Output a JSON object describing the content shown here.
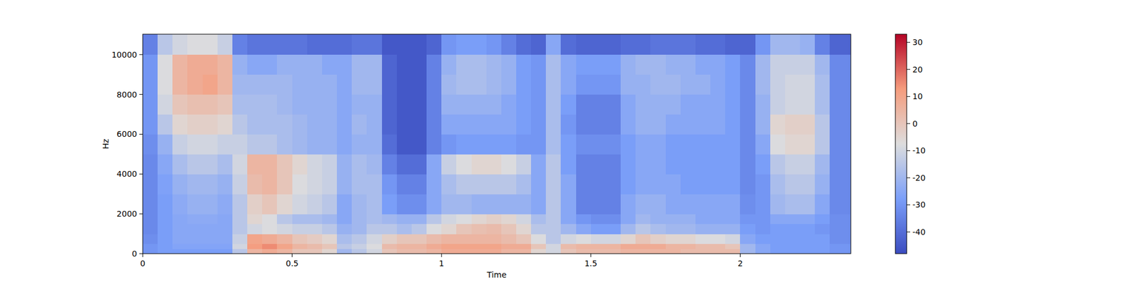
{
  "chart_data": {
    "type": "heatmap",
    "x_label": "Time",
    "y_label": "Hz",
    "xlim": [
      0,
      2.37
    ],
    "xticks": [
      0,
      0.5,
      1,
      1.5,
      2
    ],
    "ylim": [
      0,
      11025
    ],
    "yticks": [
      0,
      2000,
      4000,
      6000,
      8000,
      10000
    ],
    "clim": [
      -48,
      33
    ],
    "cticks": [
      -40,
      -30,
      -20,
      -10,
      0,
      10,
      20,
      30
    ],
    "x_edges": [
      0,
      0.05,
      0.1,
      0.15,
      0.2,
      0.25,
      0.3,
      0.35,
      0.4,
      0.45,
      0.5,
      0.55,
      0.6,
      0.65,
      0.7,
      0.75,
      0.8,
      0.85,
      0.9,
      0.95,
      1,
      1.05,
      1.1,
      1.15,
      1.2,
      1.25,
      1.3,
      1.35,
      1.4,
      1.45,
      1.5,
      1.55,
      1.6,
      1.65,
      1.7,
      1.75,
      1.8,
      1.85,
      1.9,
      1.95,
      2,
      2.05,
      2.1,
      2.15,
      2.2,
      2.25,
      2.3,
      2.37
    ],
    "y_edges": [
      0,
      250,
      500,
      1000,
      1500,
      2000,
      3000,
      4000,
      5000,
      6000,
      7000,
      8000,
      9000,
      10000,
      11025
    ],
    "cells": [
      [
        -30,
        -28,
        -28,
        -28,
        -28,
        -28,
        -15,
        5,
        8,
        5,
        0,
        0,
        -5,
        -20,
        -15,
        -10,
        0,
        3,
        3,
        5,
        8,
        8,
        8,
        8,
        5,
        5,
        -5,
        -10,
        0,
        3,
        3,
        3,
        5,
        5,
        5,
        5,
        3,
        3,
        3,
        3,
        -20,
        -25,
        -28,
        -28,
        -28,
        -28,
        -30
      ],
      [
        -30,
        -28,
        -26,
        -26,
        -26,
        -26,
        -10,
        12,
        15,
        10,
        5,
        3,
        0,
        -15,
        -12,
        -8,
        3,
        5,
        5,
        8,
        10,
        10,
        10,
        10,
        8,
        8,
        0,
        -10,
        3,
        5,
        5,
        5,
        8,
        8,
        8,
        5,
        5,
        3,
        3,
        0,
        -20,
        -25,
        -28,
        -28,
        -28,
        -28,
        -30
      ],
      [
        -32,
        -28,
        -25,
        -25,
        -25,
        -25,
        -12,
        10,
        8,
        5,
        0,
        -2,
        -5,
        -18,
        -15,
        -10,
        -3,
        0,
        0,
        3,
        5,
        5,
        5,
        5,
        3,
        0,
        -8,
        -15,
        -10,
        -8,
        -10,
        -10,
        -5,
        0,
        -3,
        -5,
        -5,
        -8,
        -8,
        -10,
        -25,
        -28,
        -28,
        -28,
        -28,
        -28,
        -32
      ],
      [
        -33,
        -28,
        -25,
        -25,
        -25,
        -25,
        -15,
        -10,
        -8,
        -10,
        -12,
        -12,
        -15,
        -22,
        -20,
        -15,
        -15,
        -18,
        -15,
        -8,
        -5,
        0,
        2,
        3,
        0,
        -5,
        -15,
        -15,
        -20,
        -25,
        -28,
        -28,
        -20,
        -15,
        -18,
        -20,
        -20,
        -22,
        -22,
        -22,
        -28,
        -30,
        -28,
        -28,
        -28,
        -30,
        -32
      ],
      [
        -33,
        -28,
        -25,
        -24,
        -24,
        -25,
        -15,
        -5,
        -8,
        -15,
        -18,
        -18,
        -20,
        -25,
        -20,
        -18,
        -20,
        -22,
        -22,
        -15,
        -10,
        -8,
        -5,
        -3,
        -5,
        -10,
        -18,
        -15,
        -25,
        -30,
        -32,
        -32,
        -25,
        -20,
        -22,
        -22,
        -22,
        -25,
        -25,
        -25,
        -30,
        -30,
        -25,
        -25,
        -25,
        -28,
        -32
      ],
      [
        -33,
        -28,
        -24,
        -22,
        -22,
        -24,
        -15,
        -3,
        0,
        -5,
        -10,
        -12,
        -15,
        -25,
        -20,
        -18,
        -28,
        -32,
        -32,
        -25,
        -20,
        -20,
        -22,
        -22,
        -22,
        -22,
        -25,
        -15,
        -25,
        -35,
        -35,
        -35,
        -25,
        -22,
        -22,
        -25,
        -25,
        -25,
        -25,
        -25,
        -32,
        -30,
        -20,
        -18,
        -18,
        -25,
        -33
      ],
      [
        -33,
        -27,
        -22,
        -20,
        -20,
        -22,
        -12,
        3,
        5,
        0,
        -8,
        -10,
        -12,
        -22,
        -18,
        -18,
        -30,
        -35,
        -35,
        -25,
        -18,
        -15,
        -15,
        -15,
        -15,
        -18,
        -25,
        -15,
        -25,
        -35,
        -35,
        -35,
        -28,
        -25,
        -25,
        -25,
        -28,
        -28,
        -28,
        -28,
        -33,
        -30,
        -18,
        -15,
        -15,
        -22,
        -33
      ],
      [
        -33,
        -25,
        -18,
        -15,
        -15,
        -18,
        -10,
        5,
        5,
        0,
        -5,
        -10,
        -12,
        -22,
        -18,
        -20,
        -35,
        -40,
        -40,
        -25,
        -12,
        -8,
        -5,
        -5,
        -8,
        -12,
        -25,
        -15,
        -28,
        -35,
        -35,
        -35,
        -28,
        -25,
        -25,
        -28,
        -28,
        -28,
        -28,
        -28,
        -33,
        -28,
        -15,
        -12,
        -12,
        -20,
        -33
      ],
      [
        -32,
        -22,
        -12,
        -10,
        -10,
        -12,
        -12,
        -15,
        -15,
        -18,
        -20,
        -22,
        -22,
        -25,
        -22,
        -22,
        -40,
        -45,
        -45,
        -35,
        -30,
        -28,
        -28,
        -28,
        -28,
        -30,
        -30,
        -18,
        -28,
        -32,
        -32,
        -32,
        -28,
        -25,
        -25,
        -28,
        -28,
        -28,
        -28,
        -28,
        -33,
        -25,
        -8,
        -5,
        -5,
        -15,
        -33
      ],
      [
        -30,
        -15,
        -5,
        -3,
        -3,
        -5,
        -15,
        -18,
        -18,
        -18,
        -20,
        -22,
        -22,
        -25,
        -20,
        -22,
        -42,
        -45,
        -45,
        -35,
        -25,
        -25,
        -25,
        -25,
        -25,
        -28,
        -30,
        -18,
        -30,
        -35,
        -35,
        -35,
        -25,
        -22,
        -22,
        -25,
        -25,
        -25,
        -25,
        -28,
        -33,
        -22,
        -5,
        -3,
        -3,
        -15,
        -33
      ],
      [
        -30,
        -10,
        0,
        2,
        2,
        0,
        -18,
        -18,
        -18,
        -20,
        -22,
        -22,
        -22,
        -25,
        -22,
        -22,
        -42,
        -45,
        -45,
        -35,
        -22,
        -22,
        -22,
        -22,
        -25,
        -28,
        -30,
        -18,
        -28,
        -35,
        -35,
        -35,
        -25,
        -22,
        -22,
        -22,
        -25,
        -25,
        -25,
        -28,
        -33,
        -22,
        -12,
        -10,
        -10,
        -18,
        -33
      ],
      [
        -30,
        -8,
        5,
        8,
        10,
        5,
        -20,
        -20,
        -20,
        -20,
        -22,
        -22,
        -22,
        -25,
        -20,
        -20,
        -42,
        -45,
        -45,
        -35,
        -20,
        -18,
        -18,
        -20,
        -22,
        -28,
        -30,
        -18,
        -25,
        -30,
        -30,
        -30,
        -22,
        -22,
        -20,
        -20,
        -22,
        -22,
        -25,
        -28,
        -33,
        -20,
        -12,
        -10,
        -10,
        -18,
        -33
      ],
      [
        -30,
        -8,
        5,
        8,
        8,
        5,
        -22,
        -25,
        -25,
        -22,
        -22,
        -22,
        -25,
        -25,
        -20,
        -20,
        -42,
        -45,
        -45,
        -35,
        -22,
        -18,
        -18,
        -20,
        -22,
        -28,
        -30,
        -18,
        -25,
        -28,
        -28,
        -28,
        -22,
        -20,
        -20,
        -22,
        -22,
        -25,
        -25,
        -28,
        -33,
        -20,
        -12,
        -12,
        -12,
        -20,
        -33
      ],
      [
        -35,
        -15,
        -10,
        -8,
        -8,
        -12,
        -35,
        -38,
        -38,
        -38,
        -38,
        -40,
        -40,
        -40,
        -38,
        -38,
        -45,
        -45,
        -45,
        -42,
        -30,
        -28,
        -28,
        -30,
        -35,
        -40,
        -42,
        -25,
        -40,
        -42,
        -42,
        -42,
        -40,
        -40,
        -38,
        -38,
        -38,
        -40,
        -40,
        -42,
        -42,
        -30,
        -20,
        -20,
        -22,
        -35,
        -42
      ]
    ]
  }
}
